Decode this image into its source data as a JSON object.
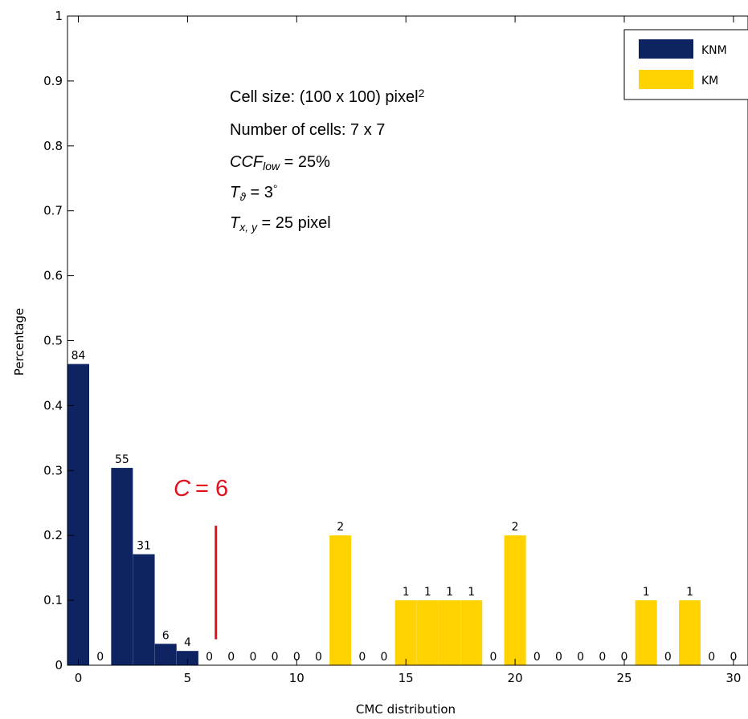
{
  "chart_data": {
    "type": "bar",
    "xlabel": "CMC distribution",
    "ylabel": "Percentage",
    "xlim": [
      -0.5,
      30.5
    ],
    "ylim": [
      0,
      1
    ],
    "xticks": [
      "0",
      "5",
      "10",
      "15",
      "20",
      "25",
      "30"
    ],
    "yticks": [
      "0",
      "0.1",
      "0.2",
      "0.3",
      "0.4",
      "0.5",
      "0.6",
      "0.7",
      "0.8",
      "0.9",
      "1"
    ],
    "grid": false,
    "legend_position": "top-right",
    "series": [
      {
        "name": "KNM",
        "color": "#0d2362",
        "points": [
          {
            "x": 0,
            "y": 0.464,
            "label": "84"
          },
          {
            "x": 1,
            "y": 0,
            "label": "0"
          },
          {
            "x": 2,
            "y": 0.304,
            "label": "55"
          },
          {
            "x": 3,
            "y": 0.171,
            "label": "31"
          },
          {
            "x": 4,
            "y": 0.033,
            "label": "6"
          },
          {
            "x": 5,
            "y": 0.022,
            "label": "4"
          }
        ]
      },
      {
        "name": "KM",
        "color": "#ffd200",
        "points": [
          {
            "x": 6,
            "y": 0,
            "label": "0"
          },
          {
            "x": 7,
            "y": 0,
            "label": "0"
          },
          {
            "x": 8,
            "y": 0,
            "label": "0"
          },
          {
            "x": 9,
            "y": 0,
            "label": "0"
          },
          {
            "x": 10,
            "y": 0,
            "label": "0"
          },
          {
            "x": 11,
            "y": 0,
            "label": "0"
          },
          {
            "x": 12,
            "y": 0.2,
            "label": "2"
          },
          {
            "x": 13,
            "y": 0,
            "label": "0"
          },
          {
            "x": 14,
            "y": 0,
            "label": "0"
          },
          {
            "x": 15,
            "y": 0.1,
            "label": "1"
          },
          {
            "x": 16,
            "y": 0.1,
            "label": "1"
          },
          {
            "x": 17,
            "y": 0.1,
            "label": "1"
          },
          {
            "x": 18,
            "y": 0.1,
            "label": "1"
          },
          {
            "x": 19,
            "y": 0,
            "label": "0"
          },
          {
            "x": 20,
            "y": 0.2,
            "label": "2"
          },
          {
            "x": 21,
            "y": 0,
            "label": "0"
          },
          {
            "x": 22,
            "y": 0,
            "label": "0"
          },
          {
            "x": 23,
            "y": 0,
            "label": "0"
          },
          {
            "x": 24,
            "y": 0,
            "label": "0"
          },
          {
            "x": 25,
            "y": 0,
            "label": "0"
          },
          {
            "x": 26,
            "y": 0.1,
            "label": "1"
          },
          {
            "x": 27,
            "y": 0,
            "label": "0"
          },
          {
            "x": 28,
            "y": 0.1,
            "label": "1"
          },
          {
            "x": 29,
            "y": 0,
            "label": "0"
          },
          {
            "x": 30,
            "y": 0,
            "label": "0"
          }
        ]
      }
    ],
    "annotations": {
      "threshold": {
        "symbol": "C",
        "equals": "= 6",
        "x": 6.3,
        "y_from": 0.04,
        "y_to": 0.215,
        "color": "#e0101e"
      },
      "lines": [
        {
          "parts": [
            {
              "t": "Cell size: (100 x 100) pixel"
            },
            {
              "t": "2",
              "sup": true
            }
          ]
        },
        {
          "parts": [
            {
              "t": "Number of cells: 7 x 7"
            }
          ]
        },
        {
          "parts": [
            {
              "t": "CCF",
              "italic": true
            },
            {
              "t": "low",
              "sub": true,
              "italic": true
            },
            {
              "t": " = 25%"
            }
          ]
        },
        {
          "parts": [
            {
              "t": "T",
              "italic": true
            },
            {
              "t": "ϑ",
              "sub": true,
              "italic": true
            },
            {
              "t": " = 3"
            },
            {
              "t": "°",
              "sup": true
            }
          ]
        },
        {
          "parts": [
            {
              "t": "T",
              "italic": true
            },
            {
              "t": "x, y",
              "sub": true,
              "italic": true
            },
            {
              "t": " = 25 pixel"
            }
          ]
        }
      ]
    }
  }
}
